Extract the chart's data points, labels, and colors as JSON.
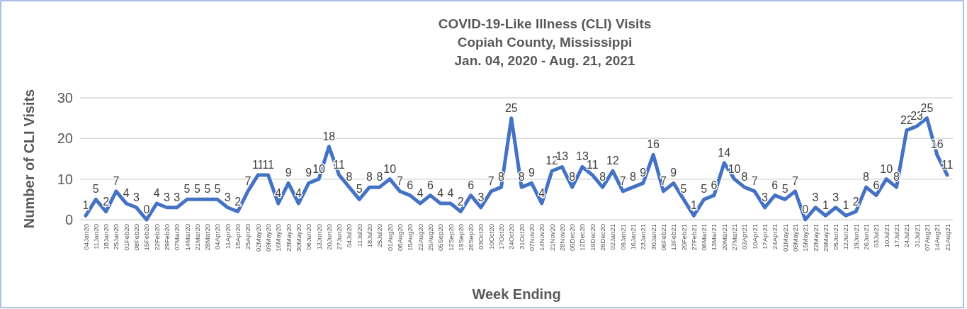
{
  "chart_data": {
    "type": "line",
    "title": "COVID-19-Like Illness (CLI) Visits\nCopiah County, Mississippi\nJan. 04, 2020 - Aug. 21, 2021",
    "xlabel": "Week Ending",
    "ylabel": "Number of CLI Visits",
    "categories": [
      "04Jan20",
      "11Jan20",
      "18Jan20",
      "25Jan20",
      "01Feb20",
      "08Feb20",
      "15Feb20",
      "22Feb20",
      "29Feb20",
      "07Mar20",
      "14Mar20",
      "21Mar20",
      "28Mar20",
      "04Apr20",
      "11Apr20",
      "18Apr20",
      "25Apr20",
      "02May20",
      "09May20",
      "16May20",
      "23May20",
      "30May20",
      "06Jun20",
      "13Jun20",
      "20Jun20",
      "27Jun20",
      "04Jul20",
      "11Jul20",
      "18Jul20",
      "25Jul20",
      "01Aug20",
      "08Aug20",
      "15Aug20",
      "22Aug20",
      "29Aug20",
      "05Sep20",
      "12Sep20",
      "19Sep20",
      "26Sep20",
      "03Oct20",
      "10Oct20",
      "17Oct20",
      "24Oct20",
      "31Oct20",
      "07Nov20",
      "14Nov20",
      "21Nov20",
      "28Nov20",
      "05Dec20",
      "12Dec20",
      "19Dec20",
      "26Dec20",
      "02Jan21",
      "09Jan21",
      "16Jan21",
      "23Jan21",
      "30Jan21",
      "06Feb21",
      "13Feb21",
      "20Feb21",
      "27Feb21",
      "06Mar21",
      "13Mar21",
      "20Mar21",
      "27Mar21",
      "03Apr21",
      "10Apr21",
      "17Apr21",
      "24Apr21",
      "01May21",
      "08May21",
      "15May21",
      "22May21",
      "29May21",
      "05Jun21",
      "12Jun21",
      "19Jun21",
      "26Jun21",
      "03Jul21",
      "10Jul21",
      "17Jul21",
      "24Jul21",
      "31Jul21",
      "07Aug21",
      "14Aug21",
      "21Aug21"
    ],
    "series": [
      {
        "color": "#4472c4",
        "values": [
          1,
          5,
          2,
          7,
          4,
          3,
          0,
          4,
          3,
          3,
          5,
          5,
          5,
          5,
          3,
          2,
          7,
          11,
          11,
          4,
          9,
          4,
          9,
          10,
          18,
          11,
          8,
          5,
          8,
          8,
          10,
          7,
          6,
          4,
          6,
          4,
          4,
          2,
          6,
          3,
          7,
          8,
          25,
          8,
          9,
          4,
          12,
          13,
          8,
          13,
          11,
          8,
          12,
          7,
          8,
          9,
          16,
          7,
          9,
          5,
          1,
          5,
          6,
          14,
          10,
          8,
          7,
          3,
          6,
          5,
          7,
          0,
          3,
          1,
          3,
          1,
          2,
          8,
          6,
          10,
          8,
          22,
          23,
          25,
          16,
          11
        ]
      }
    ],
    "ylim": [
      0,
      30
    ],
    "yticks": [
      0,
      10,
      20,
      30
    ],
    "grid": "y",
    "data_labels": true,
    "marker": "none",
    "line_style": "solid"
  }
}
